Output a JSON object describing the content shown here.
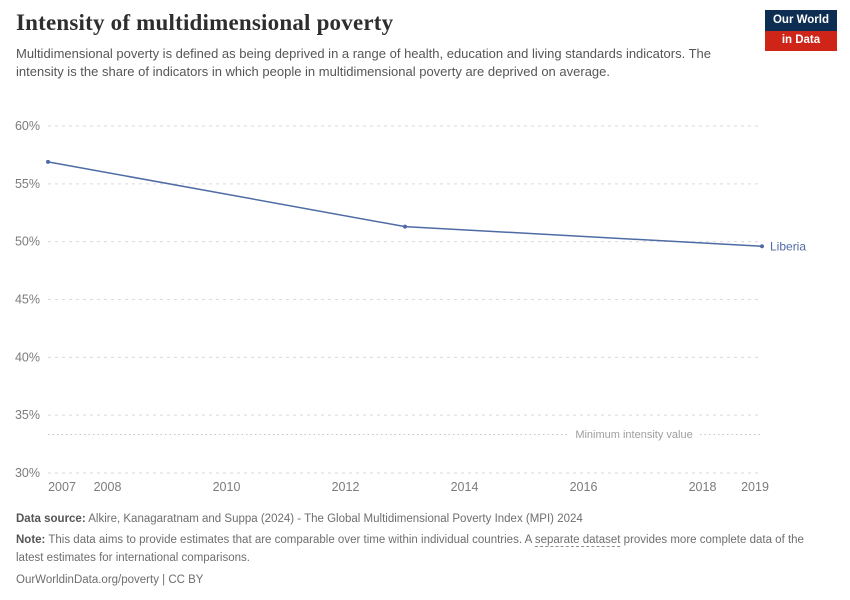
{
  "header": {
    "title": "Intensity of multidimensional poverty",
    "subtitle": "Multidimensional poverty is defined as being deprived in a range of health, education and living standards indicators. The intensity is the share of indicators in which people in multidimensional poverty are deprived on average.",
    "logo": {
      "line1": "Our World",
      "line2": "in Data"
    }
  },
  "chart_data": {
    "type": "line",
    "title": "Intensity of multidimensional poverty",
    "xlabel": "",
    "ylabel": "",
    "xlim": [
      2007,
      2019
    ],
    "ylim": [
      30,
      60
    ],
    "grid": true,
    "x_ticks": [
      2007,
      2008,
      2010,
      2012,
      2014,
      2016,
      2018,
      2019
    ],
    "y_ticks": [
      "30%",
      "35%",
      "40%",
      "45%",
      "50%",
      "55%",
      "60%"
    ],
    "series": [
      {
        "name": "Liberia",
        "color": "#4e6ba5",
        "points": [
          {
            "x": 2007,
            "y": 56.9
          },
          {
            "x": 2013,
            "y": 51.3
          },
          {
            "x": 2019,
            "y": 49.6
          }
        ]
      }
    ],
    "annotations": [
      {
        "label": "Minimum intensity value",
        "y": 33.33,
        "style": "dotted"
      }
    ],
    "legend_position": "end-of-line"
  },
  "footer": {
    "source_label": "Data source:",
    "source_text": " Alkire, Kanagaratnam and Suppa (2024) - The Global Multidimensional Poverty Index (MPI) 2024",
    "note_label": "Note:",
    "note_text_1": " This data aims to provide estimates that are comparable over time within individual countries. A ",
    "note_link": "separate dataset",
    "note_text_2": " provides more complete data of the latest estimates for international comparisons.",
    "license": "OurWorldinData.org/poverty | CC BY"
  },
  "colors": {
    "series_line": "#4e6ba5",
    "gridline": "#dadada",
    "axis_label": "#7c7c7c",
    "annotation": "#9e9e9e",
    "logo_blue": "#0d2d52",
    "logo_red": "#cf2418"
  }
}
